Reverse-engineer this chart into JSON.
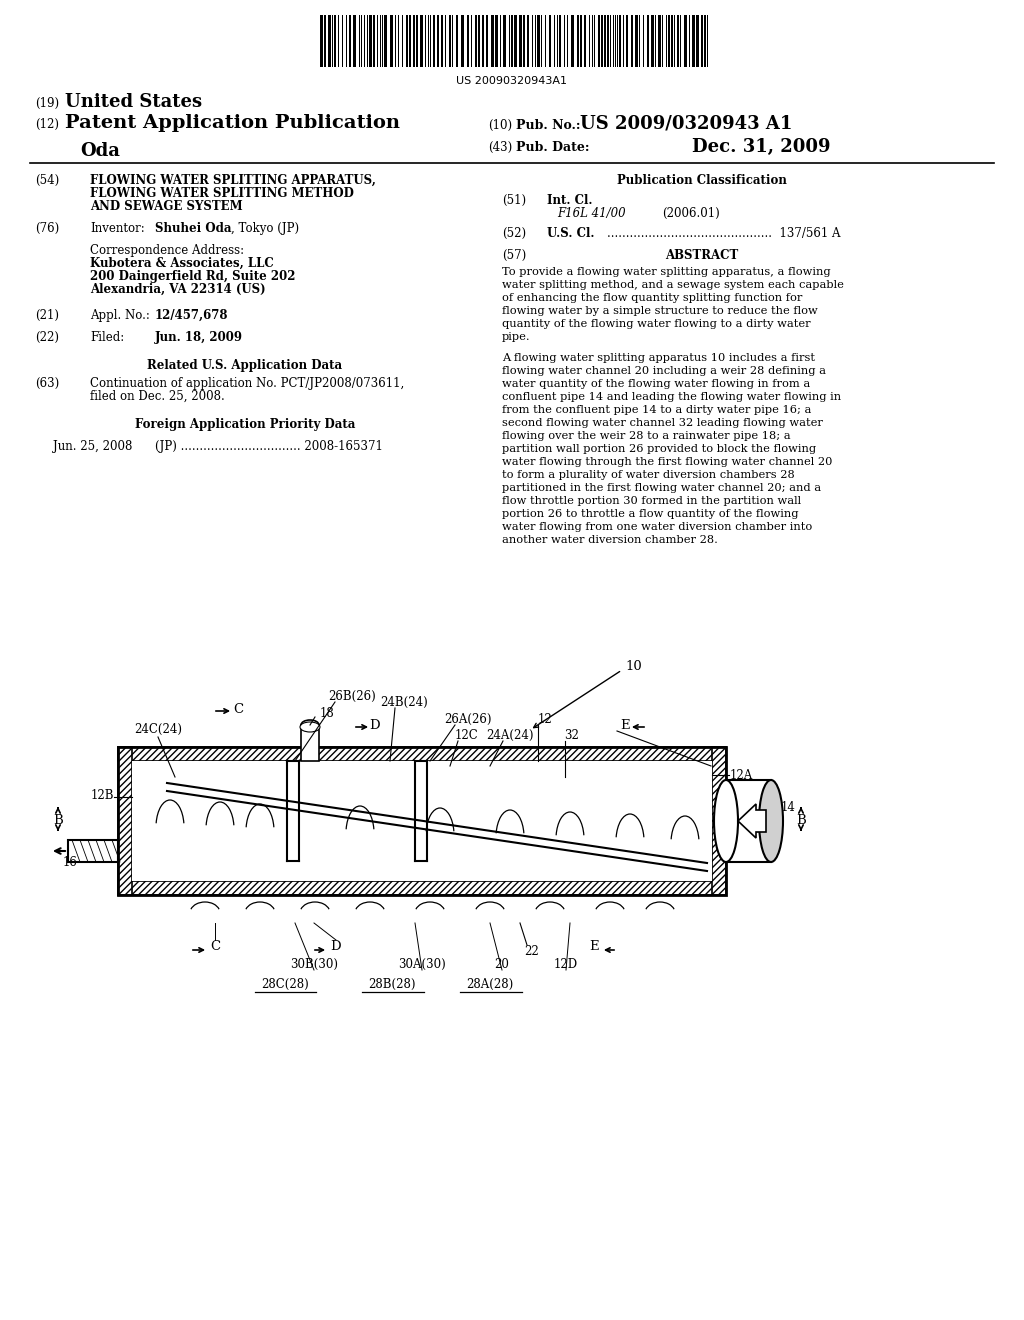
{
  "bg_color": "#ffffff",
  "barcode_text": "US 20090320943A1",
  "title_19": "(19) United States",
  "title_12": "(12) Patent Application Publication",
  "inventor_name": "Oda",
  "pub_no_label": "(10) Pub. No.:",
  "pub_no": "US 2009/0320943 A1",
  "pub_date_label": "(43) Pub. Date:",
  "pub_date": "Dec. 31, 2009",
  "abstract_p1": "To provide a flowing water splitting apparatus, a flowing water splitting method, and a sewage system each capable of enhancing the flow quantity splitting function for flowing water by a simple structure to reduce the flow quantity of the flowing water flowing to a dirty water pipe.",
  "abstract_p2": "A flowing water splitting apparatus 10 includes a first flowing water channel 20 including a weir 28 defining a water quantity of the flowing water flowing in from a confluent pipe 14 and leading the flowing water flowing in from the confluent pipe 14 to a dirty water pipe 16; a second flowing water channel 32 leading flowing water flowing over the weir 28 to a rainwater pipe 18; a partition wall portion 26 provided to block the flowing water flowing through the first flowing water channel 20 to form a plurality of water diversion chambers 28 partitioned in the first flowing water channel 20; and a flow throttle portion 30 formed in the partition wall portion 26 to throttle a flow quantity of the flowing water flowing from one water diversion chamber into another water diversion chamber 28."
}
